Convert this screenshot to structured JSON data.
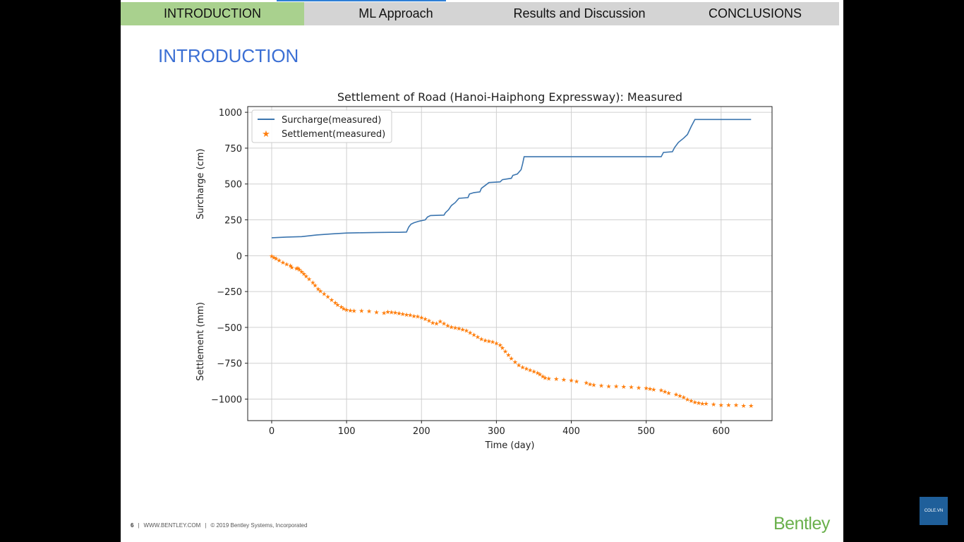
{
  "nav": {
    "tabs": [
      {
        "label": "INTRODUCTION",
        "active": true
      },
      {
        "label": "ML Approach",
        "active": false
      },
      {
        "label": "Results and Discussion",
        "active": false
      },
      {
        "label": "CONCLUSIONS",
        "active": false
      }
    ]
  },
  "page": {
    "title": "INTRODUCTION"
  },
  "chart_data": {
    "type": "line",
    "title": "Settlement of Road (Hanoi-Haiphong Expressway): Measured",
    "xlabel": "Time (day)",
    "ylabel_top": "Surcharge (cm)",
    "ylabel_bottom": "Settlement (mm)",
    "xlim": [
      -32,
      668
    ],
    "ylim": [
      -1150,
      1040
    ],
    "xticks": [
      0,
      100,
      200,
      300,
      400,
      500,
      600
    ],
    "yticks": [
      1000,
      750,
      500,
      250,
      0,
      -250,
      -500,
      -750,
      -1000
    ],
    "grid": true,
    "legend_position": "top-left",
    "series": [
      {
        "name": "Surcharge(measured)",
        "color": "#3b75af",
        "style": "line",
        "points": [
          [
            0,
            125
          ],
          [
            20,
            130
          ],
          [
            40,
            133
          ],
          [
            60,
            145
          ],
          [
            80,
            152
          ],
          [
            100,
            158
          ],
          [
            120,
            160
          ],
          [
            140,
            162
          ],
          [
            160,
            163
          ],
          [
            170,
            163
          ],
          [
            180,
            165
          ],
          [
            183,
            200
          ],
          [
            186,
            220
          ],
          [
            190,
            230
          ],
          [
            196,
            240
          ],
          [
            205,
            250
          ],
          [
            208,
            270
          ],
          [
            212,
            280
          ],
          [
            230,
            283
          ],
          [
            232,
            300
          ],
          [
            236,
            320
          ],
          [
            240,
            350
          ],
          [
            245,
            370
          ],
          [
            250,
            400
          ],
          [
            262,
            405
          ],
          [
            264,
            430
          ],
          [
            270,
            440
          ],
          [
            278,
            445
          ],
          [
            280,
            470
          ],
          [
            285,
            490
          ],
          [
            290,
            510
          ],
          [
            305,
            515
          ],
          [
            308,
            530
          ],
          [
            320,
            540
          ],
          [
            322,
            560
          ],
          [
            328,
            570
          ],
          [
            333,
            600
          ],
          [
            335,
            640
          ],
          [
            337,
            690
          ],
          [
            520,
            690
          ],
          [
            523,
            720
          ],
          [
            535,
            725
          ],
          [
            538,
            755
          ],
          [
            543,
            790
          ],
          [
            550,
            820
          ],
          [
            555,
            845
          ],
          [
            560,
            900
          ],
          [
            565,
            950
          ],
          [
            640,
            950
          ]
        ]
      },
      {
        "name": "Settlement(measured)",
        "color": "#ff7f0e",
        "style": "star",
        "points": [
          [
            0,
            0
          ],
          [
            3,
            -10
          ],
          [
            6,
            -18
          ],
          [
            10,
            -30
          ],
          [
            15,
            -45
          ],
          [
            20,
            -58
          ],
          [
            25,
            -68
          ],
          [
            27,
            -80
          ],
          [
            33,
            -88
          ],
          [
            35,
            -85
          ],
          [
            37,
            -95
          ],
          [
            40,
            -110
          ],
          [
            43,
            -125
          ],
          [
            46,
            -140
          ],
          [
            50,
            -160
          ],
          [
            55,
            -185
          ],
          [
            58,
            -205
          ],
          [
            62,
            -230
          ],
          [
            65,
            -245
          ],
          [
            70,
            -265
          ],
          [
            75,
            -285
          ],
          [
            80,
            -305
          ],
          [
            85,
            -325
          ],
          [
            88,
            -340
          ],
          [
            93,
            -355
          ],
          [
            96,
            -368
          ],
          [
            100,
            -375
          ],
          [
            105,
            -380
          ],
          [
            110,
            -382
          ],
          [
            120,
            -382
          ],
          [
            130,
            -385
          ],
          [
            140,
            -393
          ],
          [
            150,
            -396
          ],
          [
            155,
            -390
          ],
          [
            160,
            -392
          ],
          [
            165,
            -395
          ],
          [
            170,
            -400
          ],
          [
            175,
            -405
          ],
          [
            180,
            -410
          ],
          [
            185,
            -412
          ],
          [
            190,
            -418
          ],
          [
            195,
            -422
          ],
          [
            200,
            -430
          ],
          [
            205,
            -440
          ],
          [
            210,
            -450
          ],
          [
            215,
            -465
          ],
          [
            220,
            -470
          ],
          [
            225,
            -455
          ],
          [
            230,
            -470
          ],
          [
            235,
            -485
          ],
          [
            240,
            -495
          ],
          [
            245,
            -500
          ],
          [
            250,
            -505
          ],
          [
            255,
            -512
          ],
          [
            260,
            -520
          ],
          [
            265,
            -535
          ],
          [
            270,
            -550
          ],
          [
            275,
            -565
          ],
          [
            280,
            -580
          ],
          [
            285,
            -590
          ],
          [
            290,
            -595
          ],
          [
            295,
            -598
          ],
          [
            300,
            -608
          ],
          [
            305,
            -620
          ],
          [
            308,
            -640
          ],
          [
            312,
            -665
          ],
          [
            316,
            -690
          ],
          [
            320,
            -715
          ],
          [
            325,
            -740
          ],
          [
            330,
            -760
          ],
          [
            335,
            -775
          ],
          [
            340,
            -785
          ],
          [
            345,
            -795
          ],
          [
            350,
            -805
          ],
          [
            355,
            -815
          ],
          [
            358,
            -825
          ],
          [
            362,
            -840
          ],
          [
            365,
            -850
          ],
          [
            370,
            -855
          ],
          [
            380,
            -858
          ],
          [
            390,
            -862
          ],
          [
            400,
            -868
          ],
          [
            407,
            -875
          ],
          [
            420,
            -885
          ],
          [
            425,
            -895
          ],
          [
            430,
            -900
          ],
          [
            440,
            -905
          ],
          [
            450,
            -910
          ],
          [
            460,
            -910
          ],
          [
            470,
            -912
          ],
          [
            480,
            -915
          ],
          [
            490,
            -918
          ],
          [
            500,
            -920
          ],
          [
            505,
            -925
          ],
          [
            510,
            -930
          ],
          [
            520,
            -935
          ],
          [
            525,
            -945
          ],
          [
            530,
            -955
          ],
          [
            540,
            -965
          ],
          [
            545,
            -975
          ],
          [
            550,
            -985
          ],
          [
            555,
            -1000
          ],
          [
            560,
            -1010
          ],
          [
            565,
            -1020
          ],
          [
            570,
            -1025
          ],
          [
            575,
            -1030
          ],
          [
            580,
            -1030
          ],
          [
            590,
            -1035
          ],
          [
            600,
            -1040
          ],
          [
            610,
            -1040
          ],
          [
            620,
            -1040
          ],
          [
            630,
            -1045
          ],
          [
            640,
            -1045
          ]
        ]
      }
    ]
  },
  "footer": {
    "page_number": "6",
    "separator": "|",
    "website": "WWW.BENTLEY.COM",
    "copyright": "© 2019 Bentley Systems, Incorporated"
  },
  "logo": {
    "text": "Bentley"
  },
  "watermark": {
    "text": "COLE.VN"
  }
}
